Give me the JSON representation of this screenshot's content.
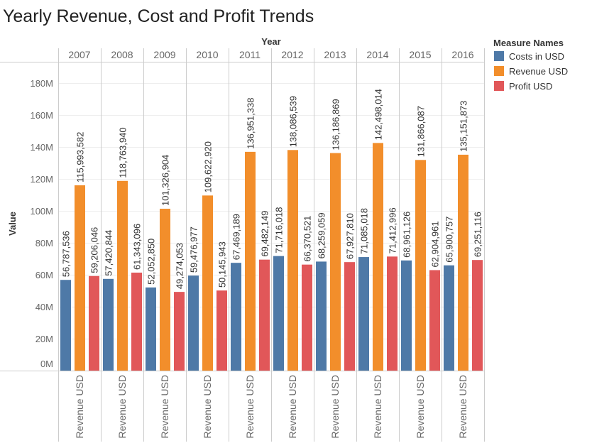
{
  "chart_data": {
    "type": "bar",
    "title": "Yearly Revenue, Cost and Profit Trends",
    "column_header": "Year",
    "categories": [
      "2007",
      "2008",
      "2009",
      "2010",
      "2011",
      "2012",
      "2013",
      "2014",
      "2015",
      "2016"
    ],
    "ylabel": "Value",
    "ylim": [
      0,
      190000000
    ],
    "yticks": [
      0,
      20000000,
      40000000,
      60000000,
      80000000,
      100000000,
      120000000,
      140000000,
      160000000,
      180000000
    ],
    "ytick_labels": [
      "0M",
      "20M",
      "40M",
      "60M",
      "80M",
      "100M",
      "120M",
      "140M",
      "160M",
      "180M"
    ],
    "bottom_label": "Revenue USD",
    "grid": true,
    "legend": {
      "title": "Measure Names",
      "placement": "right"
    },
    "series": [
      {
        "name": "Costs in USD",
        "color": "#4e79a7",
        "values": [
          56787536,
          57420844,
          52052850,
          59476977,
          67469189,
          71716018,
          68259059,
          71085018,
          68961126,
          65900757
        ],
        "labels": [
          "56,787,536",
          "57,420,844",
          "52,052,850",
          "59,476,977",
          "67,469,189",
          "71,716,018",
          "68,259,059",
          "71,085,018",
          "68,961,126",
          "65,900,757"
        ]
      },
      {
        "name": "Revenue USD",
        "color": "#f28e2b",
        "values": [
          115993582,
          118763940,
          101326904,
          109622920,
          136951338,
          138086539,
          136186869,
          142498014,
          131866087,
          135151873
        ],
        "labels": [
          "115,993,582",
          "118,763,940",
          "101,326,904",
          "109,622,920",
          "136,951,338",
          "138,086,539",
          "136,186,869",
          "142,498,014",
          "131,866,087",
          "135,151,873"
        ]
      },
      {
        "name": "Profit USD",
        "color": "#e15759",
        "values": [
          59206046,
          61343096,
          49274053,
          50145943,
          69482149,
          66370521,
          67927810,
          71412996,
          62904961,
          69251116
        ],
        "labels": [
          "59,206,046",
          "61,343,096",
          "49,274,053",
          "50,145,943",
          "69,482,149",
          "66,370,521",
          "67,927,810",
          "71,412,996",
          "62,904,961",
          "69,251,116"
        ]
      }
    ]
  }
}
